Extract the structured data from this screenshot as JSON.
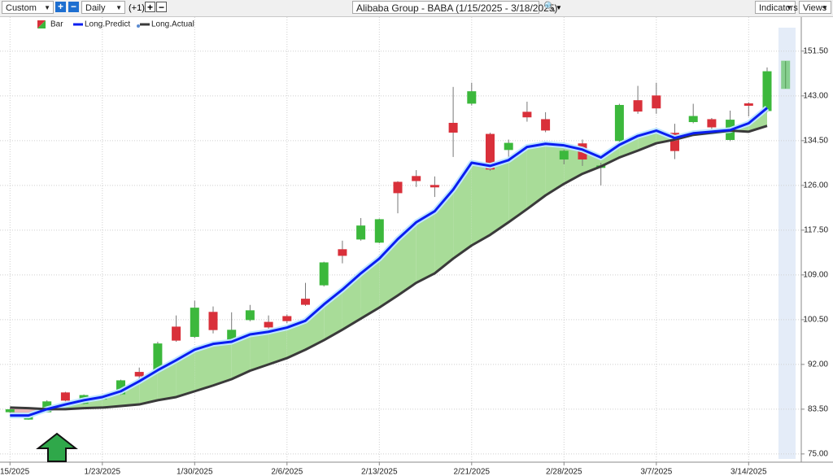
{
  "toolbar": {
    "range": "Custom",
    "interval": "Daily",
    "offset": "(+1)",
    "indicators": "Indicators",
    "views": "Views"
  },
  "chart_data": {
    "type": "candlestick",
    "title": "Alibaba Group - BABA (1/15/2025 - 3/18/2025)",
    "categories": [
      "15/2025",
      null,
      null,
      null,
      null,
      "1/23/2025",
      null,
      null,
      null,
      null,
      "1/30/2025",
      null,
      null,
      null,
      null,
      "2/6/2025",
      null,
      null,
      null,
      null,
      "2/13/2025",
      null,
      null,
      null,
      null,
      "2/21/2025",
      null,
      null,
      null,
      null,
      "2/28/2025",
      null,
      null,
      null,
      null,
      "3/7/2025",
      null,
      null,
      null,
      null,
      "3/14/2025",
      null,
      null
    ],
    "ylim": [
      73.9,
      155.8
    ],
    "yticks": [
      {
        "value": 75,
        "label": "75.00"
      },
      {
        "value": 83.5,
        "label": "83.50"
      },
      {
        "value": 92,
        "label": "92.00"
      },
      {
        "value": 100.5,
        "label": "100.50"
      },
      {
        "value": 109,
        "label": "109.00"
      },
      {
        "value": 117.5,
        "label": "117.50"
      },
      {
        "value": 126,
        "label": "126.00"
      },
      {
        "value": 134.5,
        "label": "134.50"
      },
      {
        "value": 143,
        "label": "143.00"
      },
      {
        "value": 151.5,
        "label": "151.50"
      }
    ],
    "grid": true,
    "band_colors": {
      "above": "#a8dc98",
      "below": "#e8b8b8"
    },
    "series": [
      {
        "name": "Bar",
        "up_color": "#3cb83c",
        "down_color": "#d9303a",
        "open": [
          83.0,
          81.6,
          83.0,
          86.6,
          84.6,
          85.4,
          86.4,
          90.5,
          90.8,
          99.1,
          97.3,
          101.9,
          96.6,
          100.5,
          100.0,
          101.1,
          104.4,
          107.1,
          113.8,
          115.8,
          115.2,
          126.6,
          127.7,
          126.0,
          137.8,
          141.6,
          135.7,
          132.8,
          139.9,
          138.5,
          131.0,
          133.9,
          129.4,
          134.5,
          142.1,
          143.0,
          135.9,
          138.1,
          138.5,
          134.7,
          141.5,
          140.2,
          144.4
        ],
        "high": [
          83.6,
          82.3,
          85.2,
          86.8,
          86.3,
          86.2,
          89.1,
          91.4,
          96.3,
          101.3,
          104.1,
          103.0,
          101.9,
          103.3,
          101.3,
          101.5,
          107.5,
          111.5,
          115.5,
          119.8,
          119.7,
          126.8,
          128.9,
          127.7,
          144.7,
          145.5,
          136.0,
          134.7,
          141.9,
          139.9,
          132.8,
          134.7,
          130.3,
          141.5,
          144.9,
          145.5,
          137.7,
          141.5,
          138.8,
          140.2,
          141.8,
          148.4,
          149.6
        ],
        "low": [
          82.8,
          81.5,
          82.9,
          85.0,
          84.4,
          85.2,
          86.2,
          89.2,
          90.6,
          96.3,
          97.0,
          97.9,
          96.3,
          100.2,
          98.8,
          99.8,
          103.1,
          106.8,
          111.2,
          115.5,
          115.0,
          120.7,
          125.7,
          123.8,
          131.4,
          141.2,
          128.8,
          131.1,
          138.1,
          136.1,
          130.0,
          129.7,
          126.0,
          134.2,
          139.6,
          139.6,
          131.0,
          137.8,
          135.7,
          134.4,
          139.1,
          139.9,
          144.4
        ],
        "close": [
          83.4,
          82.1,
          84.9,
          85.2,
          86.1,
          86.0,
          88.9,
          89.8,
          95.9,
          96.6,
          102.7,
          98.6,
          98.5,
          102.2,
          99.1,
          100.3,
          103.4,
          111.3,
          112.7,
          118.3,
          119.5,
          124.6,
          126.9,
          125.7,
          136.1,
          143.8,
          129.1,
          134.0,
          139.0,
          136.5,
          132.5,
          131.0,
          129.7,
          141.2,
          140.1,
          140.7,
          132.6,
          139.1,
          137.1,
          138.4,
          141.2,
          147.6,
          149.6
        ]
      },
      {
        "name": "Long.Predict",
        "color": "#0a1ef0",
        "values": [
          82.3,
          82.3,
          83.5,
          84.4,
          85.2,
          85.8,
          86.9,
          88.8,
          90.9,
          92.8,
          94.8,
          95.9,
          96.3,
          97.7,
          98.2,
          99.0,
          100.3,
          103.4,
          106.2,
          109.3,
          112.1,
          115.8,
          119.0,
          121.1,
          125.2,
          130.3,
          129.7,
          130.8,
          133.3,
          133.9,
          133.6,
          132.8,
          131.3,
          133.7,
          135.4,
          136.4,
          135.0,
          135.9,
          136.2,
          136.5,
          137.8,
          140.7,
          null
        ]
      },
      {
        "name": "Long.Actual",
        "color": "#3a3a3a",
        "values": [
          83.8,
          83.7,
          83.5,
          83.5,
          83.7,
          83.8,
          84.1,
          84.4,
          85.2,
          85.8,
          86.9,
          88.0,
          89.2,
          90.8,
          92.0,
          93.2,
          94.8,
          96.6,
          98.6,
          100.7,
          102.8,
          105.1,
          107.5,
          109.3,
          112.1,
          114.6,
          116.6,
          119.0,
          121.5,
          124.1,
          126.3,
          128.2,
          129.6,
          131.3,
          132.6,
          134.0,
          134.7,
          135.6,
          136.0,
          136.4,
          136.2,
          137.3,
          null
        ]
      }
    ]
  }
}
